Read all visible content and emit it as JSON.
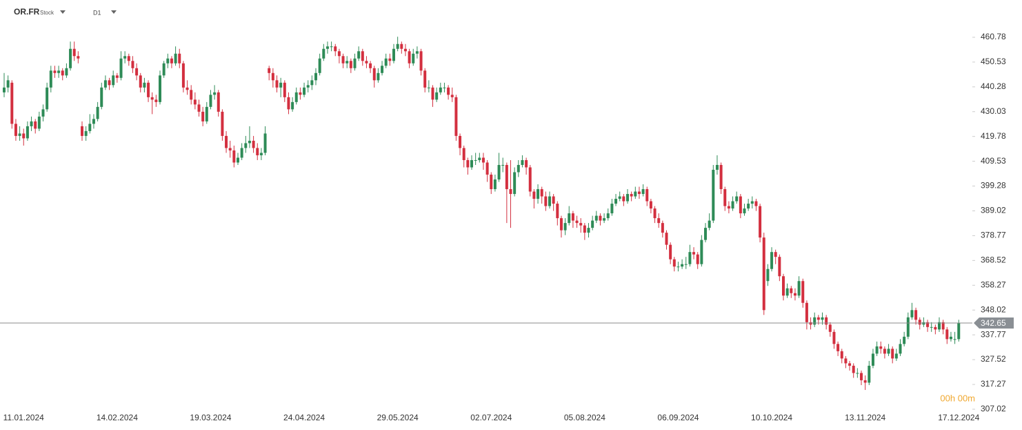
{
  "chart_data": {
    "type": "candlestick",
    "symbol": "OR.FR",
    "instrument_type": "Stock",
    "timeframe": "D1",
    "timer": "00h 00m",
    "up_color": "#2e8b57",
    "down_color": "#d32f3f",
    "last_price": 342.65,
    "ylim": [
      305,
      466.2
    ],
    "yticks": [
      307.02,
      317.27,
      327.52,
      337.77,
      348.02,
      358.27,
      368.52,
      378.77,
      389.02,
      399.28,
      409.53,
      419.78,
      430.03,
      440.28,
      450.53,
      460.78
    ],
    "xticks": [
      {
        "value": 5,
        "label": "11.01.2024"
      },
      {
        "value": 29,
        "label": "14.02.2024"
      },
      {
        "value": 53,
        "label": "19.03.2024"
      },
      {
        "value": 77,
        "label": "24.04.2024"
      },
      {
        "value": 101,
        "label": "29.05.2024"
      },
      {
        "value": 125,
        "label": "02.07.2024"
      },
      {
        "value": 149,
        "label": "05.08.2024"
      },
      {
        "value": 173,
        "label": "06.09.2024"
      },
      {
        "value": 197,
        "label": "10.10.2024"
      },
      {
        "value": 221,
        "label": "13.11.2024"
      },
      {
        "value": 245,
        "label": "17.12.2024"
      }
    ],
    "ohlc": [
      [
        438,
        446,
        436,
        440
      ],
      [
        440,
        445,
        438,
        443
      ],
      [
        442,
        443,
        423,
        425
      ],
      [
        425,
        427,
        418,
        420
      ],
      [
        420,
        424,
        418,
        421
      ],
      [
        421,
        423,
        416,
        419
      ],
      [
        419,
        426,
        418,
        424
      ],
      [
        424,
        428,
        422,
        426
      ],
      [
        426,
        427,
        421,
        423
      ],
      [
        423,
        430,
        422,
        428
      ],
      [
        428,
        433,
        426,
        431
      ],
      [
        431,
        442,
        430,
        440
      ],
      [
        440,
        449,
        438,
        447
      ],
      [
        447,
        449,
        444,
        446
      ],
      [
        446,
        449,
        444,
        447
      ],
      [
        447,
        448,
        443,
        445
      ],
      [
        445,
        450,
        444,
        448
      ],
      [
        448,
        459,
        447,
        456
      ],
      [
        456,
        459,
        451,
        453
      ],
      [
        453,
        455,
        450,
        452
      ],
      [
        424,
        426,
        418,
        420
      ],
      [
        420,
        424,
        418,
        422
      ],
      [
        422,
        429,
        421,
        425
      ],
      [
        425,
        429,
        423,
        427
      ],
      [
        427,
        434,
        426,
        432
      ],
      [
        432,
        442,
        431,
        440
      ],
      [
        440,
        445,
        439,
        443
      ],
      [
        443,
        444,
        439,
        441
      ],
      [
        441,
        447,
        440,
        445
      ],
      [
        445,
        446,
        442,
        444
      ],
      [
        444,
        455,
        443,
        452
      ],
      [
        452,
        455,
        450,
        453
      ],
      [
        453,
        454,
        449,
        451
      ],
      [
        451,
        453,
        446,
        448
      ],
      [
        448,
        450,
        443,
        445
      ],
      [
        445,
        446,
        438,
        440
      ],
      [
        440,
        444,
        438,
        442
      ],
      [
        442,
        443,
        434,
        436
      ],
      [
        436,
        438,
        429,
        435
      ],
      [
        435,
        437,
        432,
        434
      ],
      [
        434,
        447,
        433,
        445
      ],
      [
        445,
        451,
        444,
        450
      ],
      [
        450,
        454,
        448,
        452
      ],
      [
        452,
        453,
        448,
        450
      ],
      [
        450,
        457,
        449,
        454
      ],
      [
        454,
        456,
        448,
        450
      ],
      [
        450,
        451,
        438,
        440
      ],
      [
        440,
        443,
        437,
        439
      ],
      [
        439,
        441,
        433,
        435
      ],
      [
        435,
        438,
        431,
        433
      ],
      [
        433,
        435,
        428,
        430
      ],
      [
        430,
        432,
        424,
        426
      ],
      [
        426,
        434,
        425,
        432
      ],
      [
        432,
        439,
        431,
        437
      ],
      [
        437,
        441,
        435,
        438
      ],
      [
        438,
        439,
        428,
        430
      ],
      [
        430,
        431,
        418,
        420
      ],
      [
        420,
        422,
        413,
        415
      ],
      [
        415,
        418,
        411,
        414
      ],
      [
        414,
        416,
        407,
        409
      ],
      [
        409,
        413,
        408,
        411
      ],
      [
        411,
        417,
        410,
        415
      ],
      [
        415,
        420,
        413,
        417
      ],
      [
        417,
        424,
        415,
        418
      ],
      [
        418,
        420,
        413,
        415
      ],
      [
        415,
        417,
        410,
        412
      ],
      [
        412,
        415,
        410,
        413
      ],
      [
        413,
        424,
        412,
        421
      ],
      [
        448,
        449,
        443,
        446
      ],
      [
        446,
        448,
        440,
        443
      ],
      [
        443,
        445,
        438,
        440
      ],
      [
        440,
        444,
        436,
        442
      ],
      [
        442,
        443,
        434,
        436
      ],
      [
        436,
        438,
        429,
        431
      ],
      [
        431,
        436,
        430,
        434
      ],
      [
        434,
        440,
        433,
        438
      ],
      [
        438,
        440,
        435,
        437
      ],
      [
        437,
        442,
        436,
        440
      ],
      [
        440,
        443,
        438,
        441
      ],
      [
        441,
        445,
        439,
        443
      ],
      [
        443,
        448,
        441,
        446
      ],
      [
        446,
        454,
        445,
        452
      ],
      [
        452,
        458,
        451,
        456
      ],
      [
        456,
        459,
        454,
        457
      ],
      [
        457,
        459,
        455,
        457
      ],
      [
        457,
        458,
        453,
        455
      ],
      [
        455,
        456,
        450,
        453
      ],
      [
        453,
        454,
        448,
        450
      ],
      [
        450,
        453,
        448,
        451
      ],
      [
        451,
        452,
        446,
        448
      ],
      [
        448,
        454,
        447,
        452
      ],
      [
        452,
        457,
        451,
        455
      ],
      [
        455,
        456,
        449,
        451
      ],
      [
        451,
        453,
        448,
        450
      ],
      [
        450,
        451,
        446,
        448
      ],
      [
        448,
        449,
        440,
        443
      ],
      [
        443,
        448,
        442,
        446
      ],
      [
        446,
        451,
        445,
        449
      ],
      [
        449,
        454,
        448,
        452
      ],
      [
        452,
        454,
        449,
        451
      ],
      [
        451,
        458,
        450,
        456
      ],
      [
        456,
        461,
        455,
        458
      ],
      [
        458,
        459,
        454,
        456
      ],
      [
        456,
        458,
        453,
        455
      ],
      [
        455,
        456,
        448,
        450
      ],
      [
        450,
        456,
        449,
        454
      ],
      [
        454,
        457,
        452,
        455
      ],
      [
        455,
        456,
        445,
        447
      ],
      [
        447,
        448,
        438,
        440
      ],
      [
        440,
        443,
        438,
        440
      ],
      [
        440,
        441,
        432,
        435
      ],
      [
        435,
        440,
        434,
        438
      ],
      [
        438,
        442,
        437,
        440
      ],
      [
        440,
        442,
        438,
        440
      ],
      [
        440,
        441,
        435,
        437
      ],
      [
        437,
        440,
        434,
        436
      ],
      [
        436,
        437,
        418,
        420
      ],
      [
        420,
        421,
        412,
        415
      ],
      [
        415,
        416,
        407,
        410
      ],
      [
        410,
        411,
        404,
        407
      ],
      [
        407,
        412,
        406,
        410
      ],
      [
        410,
        413,
        408,
        410
      ],
      [
        410,
        413,
        409,
        411
      ],
      [
        411,
        413,
        406,
        409
      ],
      [
        409,
        410,
        401,
        404
      ],
      [
        404,
        405,
        396,
        398
      ],
      [
        398,
        404,
        397,
        402
      ],
      [
        402,
        413,
        401,
        408
      ],
      [
        408,
        411,
        405,
        408
      ],
      [
        408,
        409,
        384,
        398
      ],
      [
        398,
        410,
        382,
        396
      ],
      [
        396,
        407,
        395,
        405
      ],
      [
        405,
        410,
        403,
        408
      ],
      [
        408,
        412,
        407,
        410
      ],
      [
        410,
        411,
        404,
        407
      ],
      [
        407,
        408,
        395,
        397
      ],
      [
        397,
        398,
        390,
        394
      ],
      [
        394,
        400,
        392,
        398
      ],
      [
        398,
        399,
        392,
        395
      ],
      [
        395,
        397,
        389,
        391
      ],
      [
        391,
        397,
        390,
        395
      ],
      [
        395,
        396,
        389,
        392
      ],
      [
        392,
        393,
        383,
        386
      ],
      [
        386,
        387,
        378,
        381
      ],
      [
        381,
        386,
        379,
        384
      ],
      [
        384,
        391,
        383,
        388
      ],
      [
        388,
        389,
        382,
        385
      ],
      [
        385,
        387,
        382,
        384
      ],
      [
        384,
        386,
        380,
        383
      ],
      [
        383,
        384,
        377,
        380
      ],
      [
        380,
        384,
        378,
        382
      ],
      [
        382,
        387,
        381,
        385
      ],
      [
        385,
        389,
        384,
        387
      ],
      [
        387,
        388,
        383,
        385
      ],
      [
        385,
        388,
        384,
        386
      ],
      [
        386,
        390,
        385,
        388
      ],
      [
        388,
        394,
        387,
        392
      ],
      [
        392,
        396,
        391,
        394
      ],
      [
        394,
        397,
        393,
        395
      ],
      [
        395,
        396,
        391,
        393
      ],
      [
        393,
        398,
        392,
        396
      ],
      [
        396,
        397,
        393,
        395
      ],
      [
        395,
        399,
        394,
        397
      ],
      [
        397,
        399,
        394,
        396
      ],
      [
        396,
        400,
        395,
        398
      ],
      [
        398,
        399,
        391,
        393
      ],
      [
        393,
        394,
        388,
        390
      ],
      [
        390,
        391,
        384,
        386
      ],
      [
        386,
        388,
        382,
        384
      ],
      [
        384,
        385,
        378,
        380
      ],
      [
        380,
        381,
        373,
        375
      ],
      [
        375,
        376,
        367,
        369
      ],
      [
        369,
        370,
        364,
        366
      ],
      [
        366,
        368,
        364,
        366
      ],
      [
        366,
        369,
        365,
        367
      ],
      [
        367,
        370,
        365,
        367
      ],
      [
        367,
        375,
        366,
        372
      ],
      [
        372,
        374,
        369,
        371
      ],
      [
        371,
        372,
        365,
        367
      ],
      [
        367,
        379,
        366,
        377
      ],
      [
        377,
        384,
        376,
        382
      ],
      [
        382,
        388,
        381,
        385
      ],
      [
        385,
        408,
        384,
        406
      ],
      [
        406,
        412,
        404,
        408
      ],
      [
        408,
        409,
        396,
        398
      ],
      [
        398,
        399,
        389,
        391
      ],
      [
        391,
        393,
        388,
        390
      ],
      [
        390,
        395,
        389,
        393
      ],
      [
        393,
        397,
        392,
        395
      ],
      [
        395,
        396,
        386,
        388
      ],
      [
        388,
        392,
        387,
        390
      ],
      [
        390,
        394,
        389,
        392
      ],
      [
        392,
        395,
        390,
        393
      ],
      [
        393,
        394,
        389,
        391
      ],
      [
        391,
        392,
        376,
        378
      ],
      [
        378,
        380,
        346,
        348
      ],
      [
        360,
        367,
        358,
        365
      ],
      [
        365,
        374,
        364,
        372
      ],
      [
        372,
        373,
        367,
        370
      ],
      [
        370,
        371,
        360,
        362
      ],
      [
        362,
        363,
        352,
        354
      ],
      [
        354,
        359,
        353,
        357
      ],
      [
        357,
        358,
        353,
        355
      ],
      [
        355,
        357,
        352,
        354
      ],
      [
        354,
        362,
        353,
        360
      ],
      [
        360,
        361,
        349,
        351
      ],
      [
        351,
        352,
        340,
        343
      ],
      [
        343,
        345,
        340,
        342
      ],
      [
        342,
        347,
        341,
        345
      ],
      [
        345,
        346,
        342,
        344
      ],
      [
        344,
        347,
        342,
        345
      ],
      [
        345,
        346,
        340,
        342
      ],
      [
        342,
        343,
        337,
        339
      ],
      [
        339,
        340,
        332,
        334
      ],
      [
        334,
        335,
        329,
        331
      ],
      [
        331,
        332,
        326,
        328
      ],
      [
        328,
        329,
        324,
        326
      ],
      [
        326,
        327,
        323,
        325
      ],
      [
        325,
        326,
        320,
        322
      ],
      [
        322,
        324,
        320,
        322
      ],
      [
        322,
        323,
        317,
        319
      ],
      [
        319,
        321,
        315,
        318
      ],
      [
        318,
        327,
        317,
        325
      ],
      [
        325,
        332,
        324,
        330
      ],
      [
        330,
        335,
        329,
        333
      ],
      [
        333,
        335,
        330,
        332
      ],
      [
        332,
        333,
        328,
        330
      ],
      [
        330,
        334,
        329,
        332
      ],
      [
        332,
        333,
        326,
        328
      ],
      [
        328,
        332,
        327,
        330
      ],
      [
        330,
        336,
        329,
        334
      ],
      [
        334,
        339,
        333,
        337
      ],
      [
        337,
        347,
        336,
        345
      ],
      [
        345,
        351,
        344,
        348
      ],
      [
        348,
        349,
        342,
        344
      ],
      [
        344,
        345,
        340,
        342
      ],
      [
        342,
        345,
        341,
        343
      ],
      [
        343,
        344,
        339,
        341
      ],
      [
        341,
        343,
        339,
        341
      ],
      [
        341,
        342,
        338,
        340
      ],
      [
        340,
        345,
        339,
        343
      ],
      [
        343,
        344,
        338,
        340
      ],
      [
        340,
        341,
        334,
        336
      ],
      [
        336,
        339,
        335,
        337
      ],
      [
        336,
        339,
        334,
        336
      ],
      [
        336,
        344,
        335,
        342.65
      ]
    ]
  }
}
